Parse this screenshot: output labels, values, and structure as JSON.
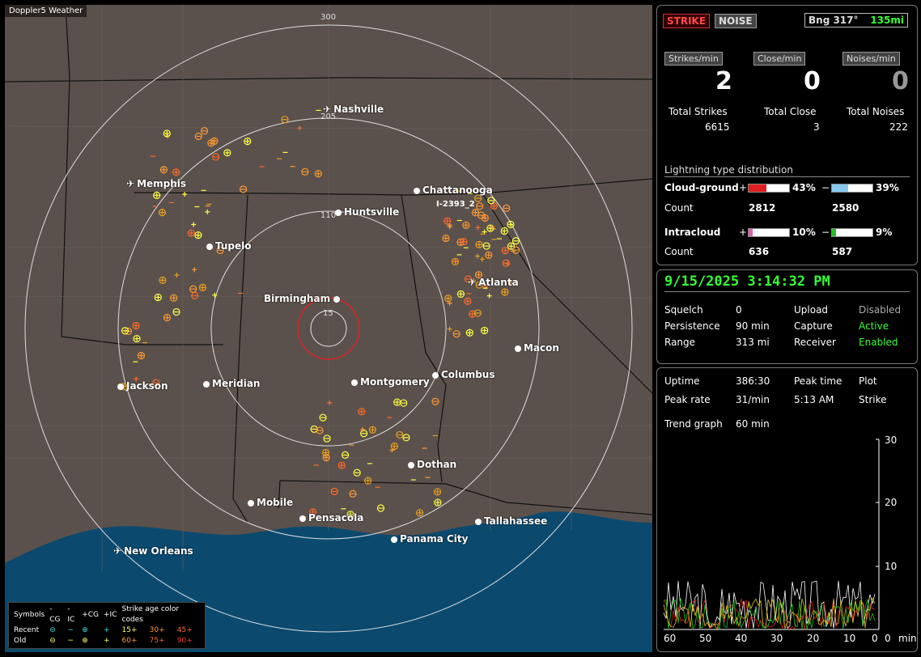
{
  "app_title": "Doppler5 Weather",
  "map": {
    "ring_labels": [
      "300",
      "205",
      "110",
      "15"
    ],
    "storm_label": "I-2393_2",
    "cities": [
      {
        "name": "Nashville",
        "airport": true
      },
      {
        "name": "Memphis",
        "airport": true
      },
      {
        "name": "Chattanooga",
        "airport": false
      },
      {
        "name": "Huntsville",
        "airport": false
      },
      {
        "name": "Tupelo",
        "airport": false
      },
      {
        "name": "Atlanta",
        "airport": true
      },
      {
        "name": "Birmingham",
        "airport": false
      },
      {
        "name": "Macon",
        "airport": false
      },
      {
        "name": "Jackson",
        "airport": false
      },
      {
        "name": "Meridian",
        "airport": false
      },
      {
        "name": "Montgomery",
        "airport": false
      },
      {
        "name": "Columbus",
        "airport": false
      },
      {
        "name": "Dothan",
        "airport": false
      },
      {
        "name": "Mobile",
        "airport": false
      },
      {
        "name": "Pensacola",
        "airport": false
      },
      {
        "name": "Tallahassee",
        "airport": false
      },
      {
        "name": "Panama City",
        "airport": false
      },
      {
        "name": "New Orleans",
        "airport": true
      }
    ],
    "legend": {
      "symbols_header": "Symbols",
      "col_neg_cg": "-CG",
      "col_neg_ic": "-IC",
      "col_pos_cg": "+CG",
      "col_pos_ic": "+IC",
      "age_header": "Strike age color codes",
      "recent_label": "Recent",
      "old_label": "Old",
      "recent_ages": [
        "15+",
        "30+",
        "45+"
      ],
      "old_ages": [
        "60+",
        "75+",
        "90+"
      ],
      "age_colors": [
        "#ffff66",
        "#ff9933",
        "#ff6633"
      ]
    }
  },
  "stats": {
    "strike_button": "STRIKE",
    "noise_button": "NOISE",
    "bearing_label": "Bng 317°",
    "bearing_range": "135mi",
    "strikes_per_min_label": "Strikes/min",
    "close_per_min_label": "Close/min",
    "noises_per_min_label": "Noises/min",
    "strikes_per_min": "2",
    "close_per_min": "0",
    "noises_per_min": "0",
    "total_strikes_label": "Total Strikes",
    "total_close_label": "Total Close",
    "total_noises_label": "Total Noises",
    "total_strikes": "6615",
    "total_close": "3",
    "total_noises": "222",
    "distribution_title": "Lightning type distribution",
    "cg_label": "Cloud-ground",
    "ic_label": "Intracloud",
    "count_label": "Count",
    "plus": "+",
    "minus": "−",
    "cg_pos_pct": "43%",
    "cg_neg_pct": "39%",
    "cg_pos_count": "2812",
    "cg_neg_count": "2580",
    "ic_pos_pct": "10%",
    "ic_neg_pct": "9%",
    "ic_pos_count": "636",
    "ic_neg_count": "587",
    "cg_pos_fill": 0.43,
    "cg_neg_fill": 0.39,
    "ic_pos_fill": 0.1,
    "ic_neg_fill": 0.09
  },
  "status": {
    "datetime": "9/15/2025 3:14:32 PM",
    "squelch_label": "Squelch",
    "squelch": "0",
    "persistence_label": "Persistence",
    "persistence": "90 min",
    "range_label": "Range",
    "range": "313 mi",
    "upload_label": "Upload",
    "upload": "Disabled",
    "capture_label": "Capture",
    "capture": "Active",
    "receiver_label": "Receiver",
    "receiver": "Enabled"
  },
  "trend": {
    "uptime_label": "Uptime",
    "uptime": "386:30",
    "peak_time_label": "Peak time",
    "peak_time": "5:13 AM",
    "plot_label": "Plot",
    "plot_value": "Strike",
    "peak_rate_label": "Peak rate",
    "peak_rate": "31/min",
    "trend_graph_label": "Trend graph",
    "trend_graph": "60 min",
    "y_ticks": [
      "30",
      "20",
      "10",
      "0"
    ],
    "x_ticks": [
      "60",
      "50",
      "40",
      "30",
      "20",
      "10",
      "0"
    ],
    "x_unit": "min"
  }
}
